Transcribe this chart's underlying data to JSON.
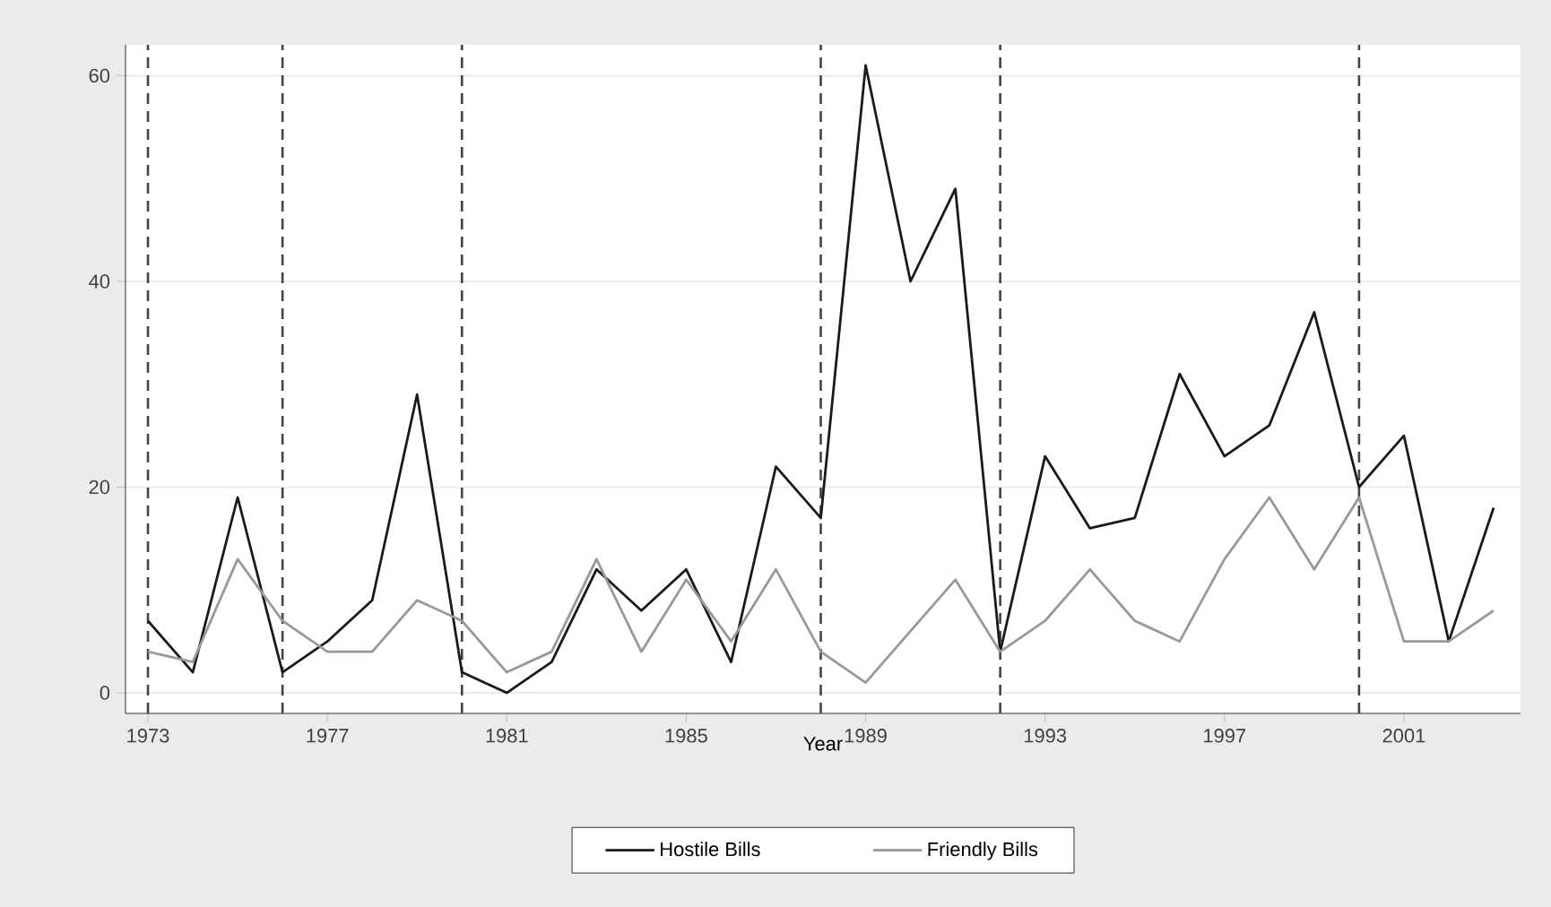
{
  "chart_data": {
    "type": "line",
    "xlabel": "Year",
    "x": [
      1973,
      1974,
      1975,
      1976,
      1977,
      1978,
      1979,
      1980,
      1981,
      1982,
      1983,
      1984,
      1985,
      1986,
      1987,
      1988,
      1989,
      1990,
      1991,
      1992,
      1993,
      1994,
      1995,
      1996,
      1997,
      1998,
      1999,
      2000,
      2001,
      2002,
      2003
    ],
    "series": [
      {
        "name": "Hostile Bills",
        "color": "#1a1a1a",
        "values": [
          7,
          2,
          19,
          2,
          5,
          9,
          29,
          2,
          0,
          3,
          12,
          8,
          12,
          3,
          22,
          17,
          61,
          40,
          49,
          4,
          23,
          16,
          17,
          31,
          23,
          26,
          37,
          20,
          25,
          5,
          18
        ]
      },
      {
        "name": "Friendly Bills",
        "color": "#999999",
        "values": [
          4,
          3,
          13,
          7,
          4,
          4,
          9,
          7,
          2,
          4,
          13,
          4,
          11,
          5,
          12,
          4,
          1,
          6,
          11,
          4,
          7,
          12,
          7,
          5,
          13,
          19,
          12,
          19,
          5,
          5,
          8
        ]
      }
    ],
    "xlim": [
      1972.5,
      2003.6
    ],
    "ylim": [
      -2,
      63
    ],
    "xticks": [
      1973,
      1977,
      1981,
      1985,
      1989,
      1993,
      1997,
      2001
    ],
    "yticks": [
      0,
      20,
      40,
      60
    ],
    "grid": "y",
    "legend": "bottom",
    "ref_lines": [
      {
        "axis": "x",
        "value": 1973,
        "color": "#444444",
        "line_style": "dashed"
      },
      {
        "axis": "x",
        "value": 1976,
        "color": "#444444",
        "line_style": "dashed"
      },
      {
        "axis": "x",
        "value": 1980,
        "color": "#444444",
        "line_style": "dashed"
      },
      {
        "axis": "x",
        "value": 1988,
        "color": "#444444",
        "line_style": "dashed"
      },
      {
        "axis": "x",
        "value": 1992,
        "color": "#444444",
        "line_style": "dashed"
      },
      {
        "axis": "x",
        "value": 2000,
        "color": "#444444",
        "line_style": "dashed"
      }
    ]
  }
}
